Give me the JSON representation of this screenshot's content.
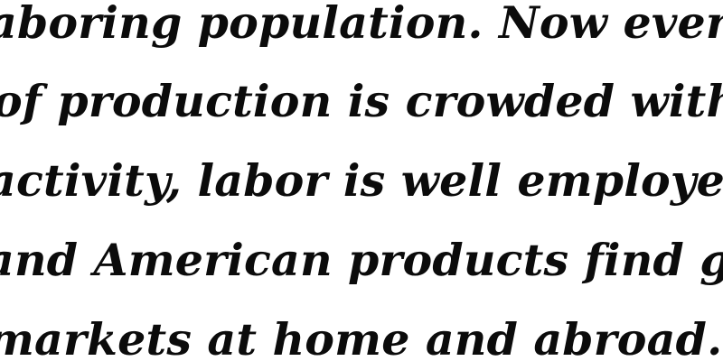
{
  "text_block": {
    "lines": [
      "aboring population. Now every",
      "of production is crowded with",
      "activity, labor is well employed,",
      "and American products find goo",
      "markets at home and abroad."
    ]
  },
  "colors": {
    "background": "#ffffff",
    "text": "#0b0b0b"
  }
}
